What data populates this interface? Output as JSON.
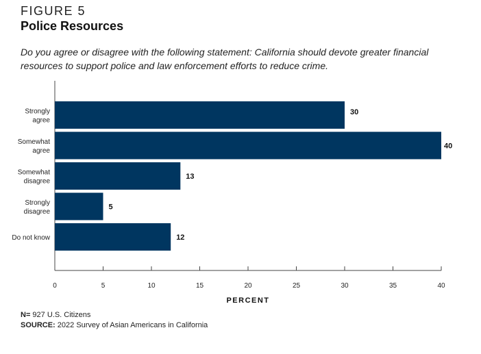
{
  "header": {
    "figure_label": "FIGURE 5",
    "title": "Police Resources",
    "question": "Do you agree or disagree with the following statement: California should devote greater financial resources to support police and law enforcement efforts to reduce crime."
  },
  "chart_data": {
    "type": "bar",
    "orientation": "horizontal",
    "title": "Police Resources",
    "categories": [
      [
        "Strongly",
        "agree"
      ],
      [
        "Somewhat",
        "agree"
      ],
      [
        "Somewhat",
        "disagree"
      ],
      [
        "Strongly",
        "disagree"
      ],
      [
        "Do not know"
      ]
    ],
    "category_names": [
      "Strongly agree",
      "Somewhat agree",
      "Somewhat disagree",
      "Strongly disagree",
      "Do not know"
    ],
    "values": [
      30,
      40,
      13,
      5,
      12
    ],
    "value_labels": [
      "30",
      "40",
      "13",
      "5",
      "12"
    ],
    "xlabel": "PERCENT",
    "ylabel": "",
    "xlim": [
      0,
      40
    ],
    "xticks": [
      0,
      5,
      10,
      15,
      20,
      25,
      30,
      35,
      40
    ],
    "grid": false,
    "legend": "none",
    "bar_color": "#003660"
  },
  "footer": {
    "n_label": "N=",
    "n_text": " 927 U.S. Citizens",
    "source_label": "SOURCE:",
    "source_text": " 2022 Survey of Asian Americans in California"
  }
}
